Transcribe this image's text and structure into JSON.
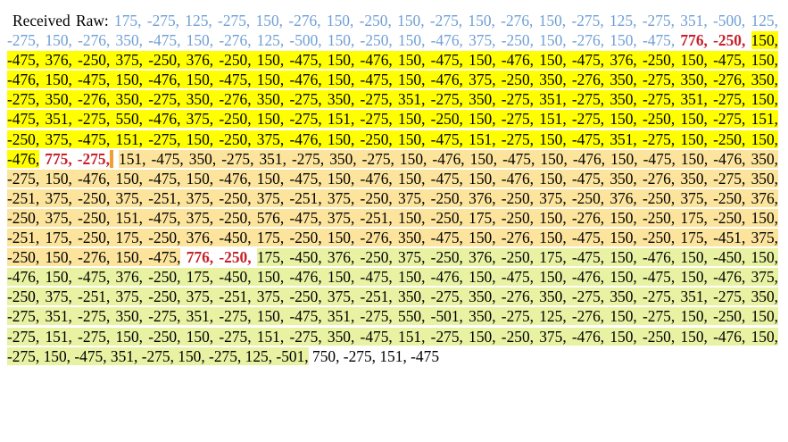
{
  "label": "Received Raw:",
  "segments": {
    "unhighlighted": "175, -275, 125, -275, 150, -276, 150, -250, 150, -275, 150, -276, 150, -275, 125, -275, 351, -500, 125, -275, 150, -276, 350, -475, 150, -276, 125, -500, 150, -250, 150, -476, 375, -250, 150, -276, 150, -475,",
    "marker_1": "776, -250,",
    "yellow": "150, -475, 376, -250, 375, -250, 376, -250, 150, -475, 150, -476, 150, -475, 150, -476, 150, -475, 376, -250, 150, -475, 150, -476, 150, -475, 150, -476, 150, -475, 150, -476, 150, -475, 150, -476, 375, -250, 350, -276, 350, -275, 350, -276, 350, -275, 350, -276, 350, -275, 350, -276, 350, -275, 350, -275, 351, -275, 350, -275, 351, -275, 350, -275, 351, -275, 150, -475, 351, -275, 550, -476, 375, -250, 150, -275, 151, -275, 150, -250, 150, -275, 151, -275, 150, -250, 150, -275, 151, -250, 375, -475, 151, -275, 150, -250, 375, -476, 150, -250, 150, -475, 151, -275, 150, -475, 351, -275, 150, -250, 150, -476,",
    "marker_2": "775, -275,",
    "orange": "151, -475, 350, -275, 351, -275, 350, -275, 150, -476, 150, -475, 150, -476, 150, -475, 150, -476, 350, -275, 150, -476, 150, -475, 150, -476, 150, -475, 150, -476, 150, -475, 150, -476, 150, -475, 350, -276, 350, -275, 350, -251, 375, -250, 375, -251, 375, -250, 375, -251, 375, -250, 375, -250, 376, -250, 375, -250, 376, -250, 375, -250, 376, -250, 375, -250, 151, -475, 375, -250, 576, -475, 375, -251, 150, -250, 175, -250, 150, -276, 150, -250, 175, -250, 150, -251, 175, -250, 175, -250, 376, -450, 175, -250, 150, -276, 350, -475, 150, -276, 150, -475, 150, -250, 175, -451, 375, -250, 150, -276, 150, -475,",
    "marker_3": "776, -250,",
    "green": "175, -450, 376, -250, 375, -250, 376, -250, 175, -475, 150, -476, 150, -450, 150, -476, 150, -475, 376, -250, 175, -450, 150, -476, 150, -475, 150, -476, 150, -475, 150, -476, 150, -475, 150, -476, 375, -250, 375, -251, 375, -250, 375, -251, 375, -250, 375, -251, 350, -275, 350, -276, 350, -275, 350, -275, 351, -275, 350, -275, 351, -275, 350, -275, 351, -275, 150, -475, 351, -275, 550, -501, 350, -275, 125, -276, 150, -275, 150, -250, 150, -275, 151, -275, 150, -250, 150, -275, 151, -275, 350, -475, 151, -275, 150, -250, 375, -476, 150, -250, 150, -476, 150, -275, 150, -475, 351, -275, 150, -275, 125, -501,",
    "tail": "750, -275, 151, -475"
  },
  "colors": {
    "unhighlighted_text": "#6f9fd6",
    "marker_text": "#c8202a",
    "yellow": "#ffff00",
    "orange": "#fde49c",
    "green": "#e9f2a2",
    "marker_2_border": "#f0a030"
  }
}
